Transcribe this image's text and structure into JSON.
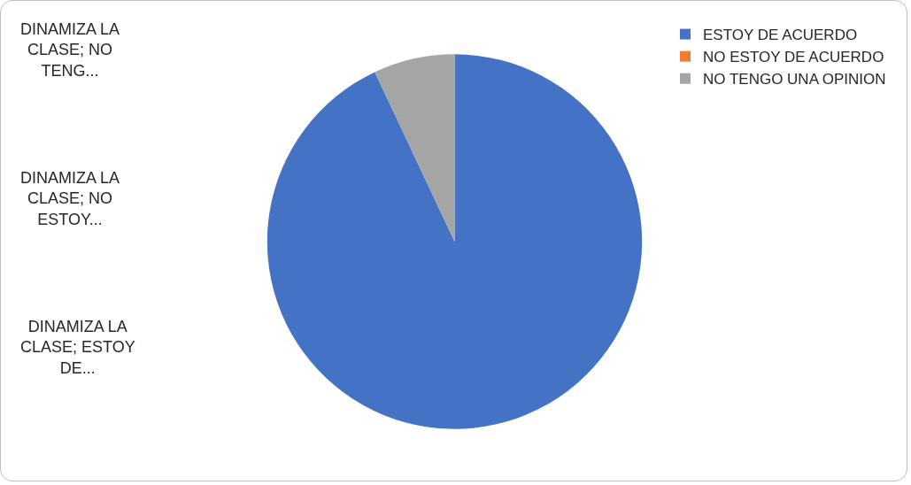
{
  "chart_data": {
    "type": "pie",
    "categories": [
      "ESTOY DE ACUERDO",
      "NO ESTOY DE ACUERDO",
      "NO TENGO UNA OPINION"
    ],
    "values": [
      93,
      0,
      7
    ],
    "colors": [
      "#4472c4",
      "#ed7d31",
      "#a5a5a5"
    ],
    "legend": "top right",
    "annotations": [
      "DINAMIZA LA CLASE; NO TENG...",
      "DINAMIZA LA CLASE; NO ESTOY...",
      "DINAMIZA LA CLASE; ESTOY DE..."
    ]
  }
}
